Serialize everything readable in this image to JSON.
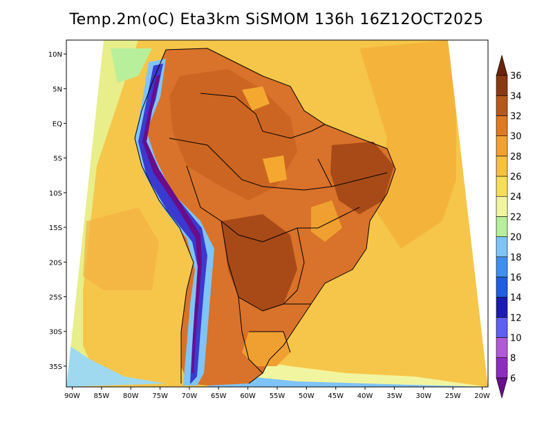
{
  "title": "Temp.2m(oC) Eta3km SiSMOM 136h 16Z12OCT2025",
  "axes": {
    "lon_labels": [
      "90W",
      "85W",
      "80W",
      "75W",
      "70W",
      "65W",
      "60W",
      "55W",
      "50W",
      "45W",
      "40W",
      "35W",
      "30W",
      "25W",
      "20W"
    ],
    "lon_values": [
      -90,
      -85,
      -80,
      -75,
      -70,
      -65,
      -60,
      -55,
      -50,
      -45,
      -40,
      -35,
      -30,
      -25,
      -20
    ],
    "lat_labels": [
      "10N",
      "5N",
      "EQ",
      "5S",
      "10S",
      "15S",
      "20S",
      "25S",
      "30S",
      "35S"
    ],
    "lat_values": [
      10,
      5,
      0,
      -5,
      -10,
      -15,
      -20,
      -25,
      -30,
      -35
    ],
    "lon_range": [
      -91,
      -19
    ],
    "lat_range": [
      -38,
      12
    ]
  },
  "colorbar": {
    "labels": [
      "6",
      "8",
      "10",
      "12",
      "14",
      "16",
      "18",
      "20",
      "22",
      "24",
      "26",
      "28",
      "30",
      "32",
      "34",
      "36"
    ],
    "colors": [
      "#6a0d8a",
      "#8e2bc0",
      "#b05ad8",
      "#5f5ff0",
      "#1c1cb0",
      "#1f5fe0",
      "#3f8ff0",
      "#7fc4f8",
      "#b8ef9a",
      "#f2f5a0",
      "#f6df58",
      "#f7c040",
      "#f4a030",
      "#e07a20",
      "#b8581a",
      "#8a3a12",
      "#6a240a"
    ]
  },
  "map": {
    "ocean_color": "#f6c64a",
    "ocean_warm_color": "#f2b03c",
    "land_hot_color": "#d9722a",
    "land_very_hot_color": "#b5541c",
    "andes_cold_color": "#3a3ad0",
    "andes_mid_color": "#7fc4f8",
    "southern_ocean_color": "#f2f5a0"
  }
}
